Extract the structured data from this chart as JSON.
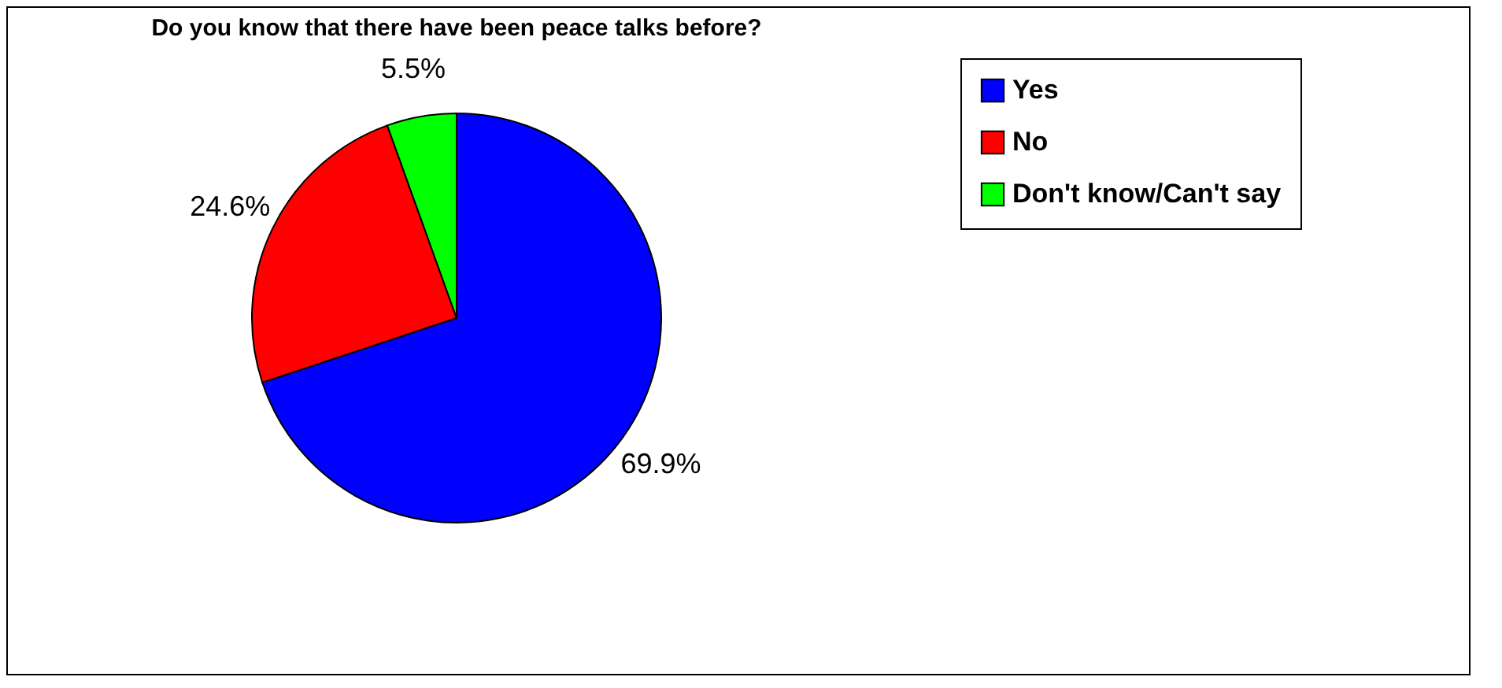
{
  "chart_data": {
    "type": "pie",
    "title": "Do you know that there have been peace talks before?",
    "categories": [
      "Yes",
      "No",
      "Don't know/Can't say"
    ],
    "values": [
      69.9,
      24.6,
      5.5
    ],
    "colors": [
      "#0000ff",
      "#ff0000",
      "#00ff00"
    ],
    "value_labels": [
      "69.9%",
      "24.6%",
      "5.5%"
    ],
    "legend": "right"
  }
}
